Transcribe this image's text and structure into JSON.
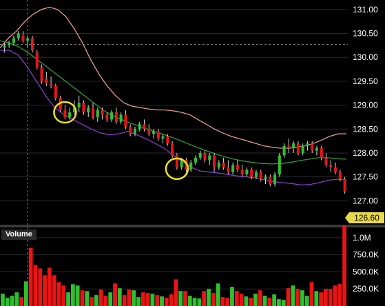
{
  "chart_data": [
    {
      "type": "candlestick",
      "title": "",
      "y_axis_side": "right",
      "ylim": [
        126.5,
        131.2
      ],
      "y_ticks": [
        "131.00",
        "130.50",
        "130.00",
        "129.50",
        "129.00",
        "128.50",
        "128.00",
        "127.50",
        "127.00"
      ],
      "y_tick_values": [
        131.0,
        130.5,
        130.0,
        129.5,
        129.0,
        128.5,
        128.0,
        127.5,
        127.0
      ],
      "last_price": 126.6,
      "last_price_label": "126.60",
      "up_color": "#2fbf2f",
      "down_color": "#e81515",
      "grid": true,
      "grid_color": "#2b2b2b",
      "crosshair_price": 130.27,
      "candles": [
        {
          "o": 130.2,
          "h": 130.3,
          "l": 130.1,
          "c": 130.25
        },
        {
          "o": 130.25,
          "h": 130.35,
          "l": 130.2,
          "c": 130.3
        },
        {
          "o": 130.3,
          "h": 130.45,
          "l": 130.25,
          "c": 130.4
        },
        {
          "o": 130.4,
          "h": 130.55,
          "l": 130.35,
          "c": 130.5
        },
        {
          "o": 130.45,
          "h": 130.55,
          "l": 130.3,
          "c": 130.35
        },
        {
          "o": 130.35,
          "h": 130.45,
          "l": 130.2,
          "c": 130.4
        },
        {
          "o": 130.4,
          "h": 130.45,
          "l": 130.1,
          "c": 130.15
        },
        {
          "o": 130.1,
          "h": 130.15,
          "l": 129.75,
          "c": 129.8
        },
        {
          "o": 129.8,
          "h": 129.85,
          "l": 129.45,
          "c": 129.5
        },
        {
          "o": 129.55,
          "h": 129.7,
          "l": 129.4,
          "c": 129.45
        },
        {
          "o": 129.45,
          "h": 129.6,
          "l": 129.35,
          "c": 129.4
        },
        {
          "o": 129.4,
          "h": 129.45,
          "l": 129.1,
          "c": 129.15
        },
        {
          "o": 129.15,
          "h": 129.2,
          "l": 128.85,
          "c": 128.9
        },
        {
          "o": 128.9,
          "h": 129.0,
          "l": 128.7,
          "c": 128.75
        },
        {
          "o": 128.75,
          "h": 128.95,
          "l": 128.7,
          "c": 128.85
        },
        {
          "o": 128.85,
          "h": 129.1,
          "l": 128.8,
          "c": 128.95
        },
        {
          "o": 128.95,
          "h": 129.2,
          "l": 128.85,
          "c": 129.05
        },
        {
          "o": 129.05,
          "h": 129.1,
          "l": 128.8,
          "c": 128.85
        },
        {
          "o": 128.85,
          "h": 129.0,
          "l": 128.75,
          "c": 128.95
        },
        {
          "o": 128.95,
          "h": 129.05,
          "l": 128.7,
          "c": 128.75
        },
        {
          "o": 128.75,
          "h": 128.95,
          "l": 128.65,
          "c": 128.9
        },
        {
          "o": 128.9,
          "h": 128.95,
          "l": 128.7,
          "c": 128.8
        },
        {
          "o": 128.8,
          "h": 128.85,
          "l": 128.65,
          "c": 128.7
        },
        {
          "o": 128.7,
          "h": 128.9,
          "l": 128.65,
          "c": 128.85
        },
        {
          "o": 128.85,
          "h": 128.95,
          "l": 128.6,
          "c": 128.65
        },
        {
          "o": 128.65,
          "h": 128.85,
          "l": 128.6,
          "c": 128.8
        },
        {
          "o": 128.8,
          "h": 128.9,
          "l": 128.5,
          "c": 128.55
        },
        {
          "o": 128.55,
          "h": 128.6,
          "l": 128.35,
          "c": 128.4
        },
        {
          "o": 128.4,
          "h": 128.55,
          "l": 128.35,
          "c": 128.5
        },
        {
          "o": 128.5,
          "h": 128.65,
          "l": 128.45,
          "c": 128.6
        },
        {
          "o": 128.6,
          "h": 128.7,
          "l": 128.45,
          "c": 128.5
        },
        {
          "o": 128.5,
          "h": 128.6,
          "l": 128.35,
          "c": 128.4
        },
        {
          "o": 128.4,
          "h": 128.5,
          "l": 128.3,
          "c": 128.45
        },
        {
          "o": 128.45,
          "h": 128.5,
          "l": 128.25,
          "c": 128.3
        },
        {
          "o": 128.3,
          "h": 128.4,
          "l": 128.2,
          "c": 128.35
        },
        {
          "o": 128.35,
          "h": 128.4,
          "l": 128.15,
          "c": 128.2
        },
        {
          "o": 128.2,
          "h": 128.25,
          "l": 127.9,
          "c": 127.95
        },
        {
          "o": 127.95,
          "h": 128.0,
          "l": 127.65,
          "c": 127.7
        },
        {
          "o": 127.7,
          "h": 127.9,
          "l": 127.65,
          "c": 127.85
        },
        {
          "o": 127.85,
          "h": 127.9,
          "l": 127.6,
          "c": 127.65
        },
        {
          "o": 127.65,
          "h": 127.85,
          "l": 127.6,
          "c": 127.8
        },
        {
          "o": 127.8,
          "h": 127.95,
          "l": 127.75,
          "c": 127.9
        },
        {
          "o": 127.9,
          "h": 128.05,
          "l": 127.85,
          "c": 128.0
        },
        {
          "o": 128.0,
          "h": 128.05,
          "l": 127.8,
          "c": 127.85
        },
        {
          "o": 127.85,
          "h": 128.0,
          "l": 127.75,
          "c": 127.95
        },
        {
          "o": 127.95,
          "h": 128.0,
          "l": 127.6,
          "c": 127.7
        },
        {
          "o": 127.7,
          "h": 127.85,
          "l": 127.65,
          "c": 127.8
        },
        {
          "o": 127.8,
          "h": 127.9,
          "l": 127.65,
          "c": 127.7
        },
        {
          "o": 127.7,
          "h": 127.85,
          "l": 127.55,
          "c": 127.6
        },
        {
          "o": 127.6,
          "h": 127.8,
          "l": 127.55,
          "c": 127.75
        },
        {
          "o": 127.75,
          "h": 127.85,
          "l": 127.6,
          "c": 127.65
        },
        {
          "o": 127.65,
          "h": 127.75,
          "l": 127.5,
          "c": 127.55
        },
        {
          "o": 127.55,
          "h": 127.7,
          "l": 127.5,
          "c": 127.65
        },
        {
          "o": 127.65,
          "h": 127.7,
          "l": 127.45,
          "c": 127.5
        },
        {
          "o": 127.5,
          "h": 127.65,
          "l": 127.45,
          "c": 127.6
        },
        {
          "o": 127.6,
          "h": 127.65,
          "l": 127.4,
          "c": 127.45
        },
        {
          "o": 127.45,
          "h": 127.55,
          "l": 127.35,
          "c": 127.5
        },
        {
          "o": 127.5,
          "h": 127.55,
          "l": 127.3,
          "c": 127.35
        },
        {
          "o": 127.35,
          "h": 127.6,
          "l": 127.3,
          "c": 127.55
        },
        {
          "o": 127.55,
          "h": 128.0,
          "l": 127.5,
          "c": 127.95
        },
        {
          "o": 127.95,
          "h": 128.2,
          "l": 127.9,
          "c": 128.15
        },
        {
          "o": 128.15,
          "h": 128.3,
          "l": 128.0,
          "c": 128.1
        },
        {
          "o": 128.1,
          "h": 128.25,
          "l": 128.0,
          "c": 128.2
        },
        {
          "o": 128.2,
          "h": 128.25,
          "l": 127.95,
          "c": 128.0
        },
        {
          "o": 128.0,
          "h": 128.2,
          "l": 127.95,
          "c": 128.15
        },
        {
          "o": 128.15,
          "h": 128.25,
          "l": 128.05,
          "c": 128.2
        },
        {
          "o": 128.2,
          "h": 128.25,
          "l": 128.0,
          "c": 128.05
        },
        {
          "o": 128.05,
          "h": 128.15,
          "l": 127.95,
          "c": 128.1
        },
        {
          "o": 128.1,
          "h": 128.15,
          "l": 127.85,
          "c": 127.9
        },
        {
          "o": 127.9,
          "h": 128.0,
          "l": 127.7,
          "c": 127.75
        },
        {
          "o": 127.75,
          "h": 127.85,
          "l": 127.6,
          "c": 127.7
        },
        {
          "o": 127.7,
          "h": 127.8,
          "l": 127.55,
          "c": 127.6
        },
        {
          "o": 127.6,
          "h": 127.65,
          "l": 127.4,
          "c": 127.45
        },
        {
          "o": 127.45,
          "h": 127.5,
          "l": 127.15,
          "c": 127.2
        }
      ],
      "indicators": [
        {
          "color": "#e89a96",
          "values": [
            130.2,
            130.4,
            130.55,
            130.75,
            130.9,
            131.0,
            131.05,
            131.0,
            130.85,
            130.6,
            130.3,
            129.95,
            129.65,
            129.4,
            129.2,
            129.05,
            128.98,
            128.95,
            128.92,
            128.9,
            128.9,
            128.88,
            128.85,
            128.8,
            128.7,
            128.6,
            128.5,
            128.42,
            128.35,
            128.3,
            128.25,
            128.2,
            128.15,
            128.12,
            128.1,
            128.1,
            128.12,
            128.15,
            128.2,
            128.27,
            128.35,
            128.4,
            128.4
          ]
        },
        {
          "color": "#2e9b3a",
          "values": [
            130.35,
            130.3,
            130.22,
            130.1,
            129.95,
            129.8,
            129.65,
            129.5,
            129.35,
            129.2,
            129.05,
            128.9,
            128.78,
            128.7,
            128.62,
            128.55,
            128.48,
            128.42,
            128.35,
            128.28,
            128.2,
            128.12,
            128.05,
            127.98,
            127.92,
            127.87,
            127.83,
            127.8,
            127.78,
            127.77,
            127.78,
            127.8,
            127.84,
            127.87,
            127.9,
            127.9,
            127.88,
            127.87
          ]
        },
        {
          "color": "#8a3cc8",
          "values": [
            130.15,
            130.15,
            130.05,
            129.8,
            129.5,
            129.2,
            128.95,
            128.8,
            128.7,
            128.6,
            128.5,
            128.42,
            128.38,
            128.4,
            128.45,
            128.38,
            128.3,
            128.2,
            128.1,
            127.95,
            127.82,
            127.7,
            127.62,
            127.6,
            127.58,
            127.55,
            127.52,
            127.5,
            127.48,
            127.44,
            127.4,
            127.38,
            127.36,
            127.33,
            127.34,
            127.38,
            127.43,
            127.45,
            127.44
          ]
        }
      ],
      "annotations": [
        {
          "type": "circle",
          "price": 128.85,
          "candle_index": 13,
          "color": "#f3e21a"
        },
        {
          "type": "circle",
          "price": 127.67,
          "candle_index": 37,
          "color": "#f3e21a"
        }
      ]
    },
    {
      "type": "bar",
      "title": "Volume",
      "y_axis_side": "right",
      "ylim": [
        0,
        1150000
      ],
      "y_ticks": [
        "1.0M",
        "750.0K",
        "500.0K",
        "250.0K"
      ],
      "y_tick_values": [
        1000000,
        750000,
        500000,
        250000
      ],
      "up_color": "#2fbf2f",
      "down_color": "#e81515",
      "values": [
        180000,
        120000,
        150000,
        200000,
        130000,
        360000,
        850000,
        600000,
        550000,
        450000,
        560000,
        450000,
        350000,
        300000,
        200000,
        320000,
        300000,
        230000,
        220000,
        130000,
        160000,
        240000,
        150000,
        200000,
        330000,
        260000,
        160000,
        240000,
        230000,
        130000,
        200000,
        190000,
        180000,
        160000,
        140000,
        120000,
        170000,
        390000,
        220000,
        220000,
        150000,
        120000,
        110000,
        220000,
        250000,
        190000,
        330000,
        130000,
        120000,
        280000,
        220000,
        180000,
        140000,
        120000,
        180000,
        230000,
        150000,
        120000,
        170000,
        100000,
        90000,
        260000,
        300000,
        250000,
        230000,
        150000,
        350000,
        220000,
        200000,
        250000,
        250000,
        300000,
        320000,
        1180000
      ]
    }
  ]
}
